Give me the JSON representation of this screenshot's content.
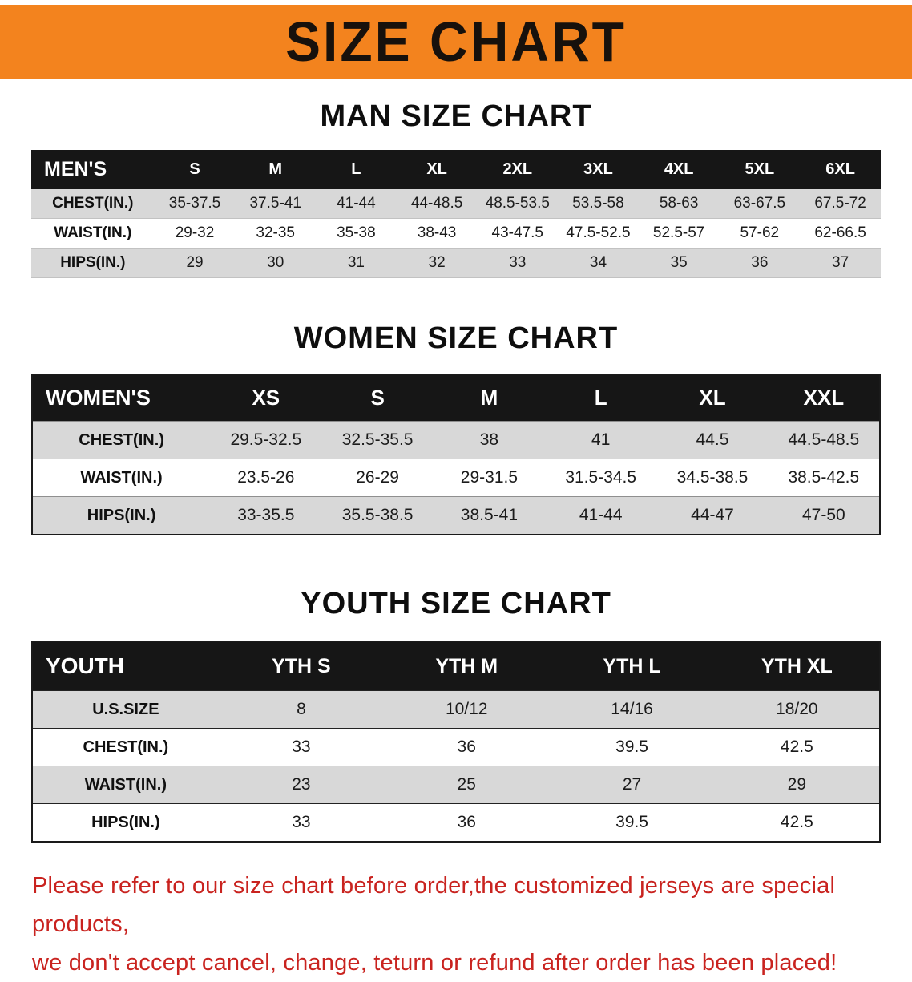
{
  "banner": {
    "title": "SIZE CHART",
    "bg_color": "#F3831E",
    "text_color": "#17110c"
  },
  "men": {
    "heading": "MAN SIZE CHART",
    "header": [
      "MEN'S",
      "S",
      "M",
      "L",
      "XL",
      "2XL",
      "3XL",
      "4XL",
      "5XL",
      "6XL"
    ],
    "rows": [
      [
        "CHEST(IN.)",
        "35-37.5",
        "37.5-41",
        "41-44",
        "44-48.5",
        "48.5-53.5",
        "53.5-58",
        "58-63",
        "63-67.5",
        "67.5-72"
      ],
      [
        "WAIST(IN.)",
        "29-32",
        "32-35",
        "35-38",
        "38-43",
        "43-47.5",
        "47.5-52.5",
        "52.5-57",
        "57-62",
        "62-66.5"
      ],
      [
        "HIPS(IN.)",
        "29",
        "30",
        "31",
        "32",
        "33",
        "34",
        "35",
        "36",
        "37"
      ]
    ]
  },
  "women": {
    "heading": "WOMEN SIZE CHART",
    "header": [
      "WOMEN'S",
      "XS",
      "S",
      "M",
      "L",
      "XL",
      "XXL"
    ],
    "rows": [
      [
        "CHEST(IN.)",
        "29.5-32.5",
        "32.5-35.5",
        "38",
        "41",
        "44.5",
        "44.5-48.5"
      ],
      [
        "WAIST(IN.)",
        "23.5-26",
        "26-29",
        "29-31.5",
        "31.5-34.5",
        "34.5-38.5",
        "38.5-42.5"
      ],
      [
        "HIPS(IN.)",
        "33-35.5",
        "35.5-38.5",
        "38.5-41",
        "41-44",
        "44-47",
        "47-50"
      ]
    ]
  },
  "youth": {
    "heading": "YOUTH SIZE CHART",
    "header": [
      "YOUTH",
      "YTH S",
      "YTH M",
      "YTH L",
      "YTH XL"
    ],
    "rows": [
      [
        "U.S.SIZE",
        "8",
        "10/12",
        "14/16",
        "18/20"
      ],
      [
        "CHEST(IN.)",
        "33",
        "36",
        "39.5",
        "42.5"
      ],
      [
        "WAIST(IN.)",
        "23",
        "25",
        "27",
        "29"
      ],
      [
        "HIPS(IN.)",
        "33",
        "36",
        "39.5",
        "42.5"
      ]
    ]
  },
  "disclaimer": {
    "line1": "Please refer to our size chart before order,the customized jerseys are special products,",
    "line2": "we don't accept cancel, change, teturn or refund after order has been placed!",
    "color": "#C9231F"
  }
}
